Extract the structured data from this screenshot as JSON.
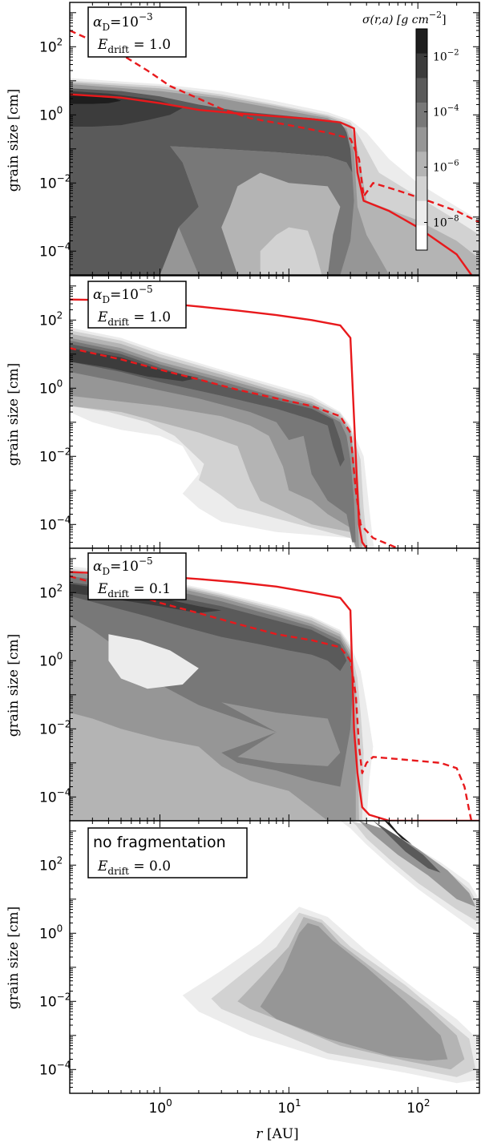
{
  "chart_data": [
    {
      "type": "heatmap",
      "panel": 1,
      "xlabel": "",
      "ylabel": "grain size [cm]",
      "xlim": [
        0.2,
        300
      ],
      "ylim": [
        2e-05,
        2000
      ],
      "xscale": "log",
      "yscale": "log",
      "x_tick_labels": [],
      "y_tick_labels": [
        "10^2",
        "10^0",
        "10^-2",
        "10^-4"
      ],
      "legend_lines": [
        "α_D = 10^-3",
        "E_drift = 1.0"
      ],
      "colorbar": {
        "title": "σ(r,a) [g cm^-2]",
        "tick_labels": [
          "10^-2",
          "10^-4",
          "10^-6",
          "10^-8"
        ],
        "levels": [
          1e-09,
          1e-08,
          1e-07,
          1e-06,
          1e-05,
          0.0001,
          0.001,
          0.01,
          0.1
        ],
        "colors": [
          "#ffffff",
          "#ececec",
          "#d2d2d2",
          "#b4b4b4",
          "#969696",
          "#787878",
          "#5a5a5a",
          "#3c3c3c",
          "#1e1e1e"
        ]
      },
      "series": [
        {
          "style": "solid",
          "color": "#e8191c",
          "points": [
            [
              0.2,
              4
            ],
            [
              0.5,
              3.2
            ],
            [
              1,
              2.2
            ],
            [
              2,
              1.4
            ],
            [
              4,
              1.1
            ],
            [
              8,
              0.9
            ],
            [
              15,
              0.75
            ],
            [
              25,
              0.6
            ],
            [
              32,
              0.4
            ],
            [
              34,
              0.02
            ],
            [
              38,
              0.003
            ],
            [
              60,
              0.0015
            ],
            [
              100,
              0.0005
            ],
            [
              200,
              8e-05
            ],
            [
              260,
              2e-05
            ]
          ]
        },
        {
          "style": "dashed",
          "color": "#e8191c",
          "points": [
            [
              0.2,
              300
            ],
            [
              0.3,
              150
            ],
            [
              0.5,
              60
            ],
            [
              0.8,
              20
            ],
            [
              1.2,
              7
            ],
            [
              2,
              3
            ],
            [
              3,
              1.5
            ],
            [
              5,
              0.8
            ],
            [
              10,
              0.5
            ],
            [
              20,
              0.3
            ],
            [
              30,
              0.2
            ],
            [
              35,
              0.05
            ],
            [
              38,
              0.004
            ],
            [
              45,
              0.01
            ],
            [
              70,
              0.006
            ],
            [
              120,
              0.003
            ],
            [
              200,
              0.0015
            ],
            [
              300,
              0.0007
            ]
          ]
        }
      ]
    },
    {
      "type": "heatmap",
      "panel": 2,
      "xlabel": "",
      "ylabel": "grain size [cm]",
      "xlim": [
        0.2,
        300
      ],
      "ylim": [
        2e-05,
        2000
      ],
      "xscale": "log",
      "yscale": "log",
      "x_tick_labels": [],
      "y_tick_labels": [
        "10^2",
        "10^0",
        "10^-2",
        "10^-4"
      ],
      "legend_lines": [
        "α_D = 10^-5",
        "E_drift = 1.0"
      ],
      "series": [
        {
          "style": "solid",
          "color": "#e8191c",
          "points": [
            [
              0.2,
              400
            ],
            [
              0.5,
              380
            ],
            [
              1,
              320
            ],
            [
              2,
              250
            ],
            [
              4,
              190
            ],
            [
              8,
              140
            ],
            [
              15,
              100
            ],
            [
              25,
              70
            ],
            [
              30,
              30
            ],
            [
              33,
              0.01
            ],
            [
              35,
              0.0001
            ],
            [
              37,
              3e-05
            ],
            [
              40,
              2e-05
            ]
          ]
        },
        {
          "style": "dashed",
          "color": "#e8191c",
          "points": [
            [
              0.2,
              15
            ],
            [
              0.5,
              7
            ],
            [
              1,
              3.5
            ],
            [
              2,
              1.8
            ],
            [
              4,
              0.9
            ],
            [
              8,
              0.5
            ],
            [
              15,
              0.3
            ],
            [
              25,
              0.15
            ],
            [
              30,
              0.05
            ],
            [
              33,
              0.001
            ],
            [
              36,
              0.0001
            ],
            [
              45,
              4e-05
            ],
            [
              70,
              2e-05
            ]
          ]
        }
      ]
    },
    {
      "type": "heatmap",
      "panel": 3,
      "xlabel": "",
      "ylabel": "grain size [cm]",
      "xlim": [
        0.2,
        300
      ],
      "ylim": [
        2e-05,
        2000
      ],
      "xscale": "log",
      "yscale": "log",
      "x_tick_labels": [],
      "y_tick_labels": [
        "10^2",
        "10^0",
        "10^-2",
        "10^-4"
      ],
      "legend_lines": [
        "α_D = 10^-5",
        "E_drift = 0.1"
      ],
      "series": [
        {
          "style": "solid",
          "color": "#e8191c",
          "points": [
            [
              0.2,
              400
            ],
            [
              0.5,
              350
            ],
            [
              1,
              300
            ],
            [
              2,
              250
            ],
            [
              4,
              200
            ],
            [
              8,
              150
            ],
            [
              15,
              100
            ],
            [
              25,
              70
            ],
            [
              30,
              30
            ],
            [
              32,
              0.01
            ],
            [
              34,
              0.0005
            ],
            [
              37,
              5e-05
            ],
            [
              42,
              3e-05
            ],
            [
              60,
              2e-05
            ],
            [
              200,
              2e-05
            ],
            [
              300,
              2e-05
            ]
          ]
        },
        {
          "style": "dashed",
          "color": "#e8191c",
          "points": [
            [
              0.2,
              300
            ],
            [
              0.5,
              120
            ],
            [
              1,
              50
            ],
            [
              2,
              25
            ],
            [
              4,
              12
            ],
            [
              8,
              6
            ],
            [
              15,
              4
            ],
            [
              25,
              2.5
            ],
            [
              30,
              1
            ],
            [
              33,
              0.1
            ],
            [
              35,
              0.003
            ],
            [
              37,
              0.0005
            ],
            [
              40,
              0.001
            ],
            [
              45,
              0.0015
            ],
            [
              70,
              0.0013
            ],
            [
              150,
              0.001
            ],
            [
              200,
              0.0007
            ],
            [
              230,
              0.0002
            ],
            [
              250,
              4e-05
            ],
            [
              260,
              2e-05
            ]
          ]
        }
      ]
    },
    {
      "type": "heatmap",
      "panel": 4,
      "xlabel": "r [AU]",
      "ylabel": "grain size [cm]",
      "xlim": [
        0.2,
        300
      ],
      "ylim": [
        2e-05,
        2000
      ],
      "xscale": "log",
      "yscale": "log",
      "x_tick_labels": [
        "10^0",
        "10^1",
        "10^2"
      ],
      "y_tick_labels": [
        "10^2",
        "10^0",
        "10^-2",
        "10^-4"
      ],
      "legend_lines": [
        "no fragmentation",
        "E_drift = 0.0"
      ],
      "series": []
    }
  ],
  "text": {
    "ylabel": "grain size [cm]",
    "xlabel_italic": "r",
    "xlabel_rest": " [AU]",
    "legend1_a": "α",
    "legend1_a_sub": "D",
    "legend1_a_eq": "=10",
    "legend1_a_exp": "−3",
    "legend1_b": "E",
    "legend1_b_sub": "drift",
    "legend1_b_eq": " = 1.0",
    "legend2_a": "α",
    "legend2_a_sub": "D",
    "legend2_a_eq": "=10",
    "legend2_a_exp": "−5",
    "legend2_b": "E",
    "legend2_b_sub": "drift",
    "legend2_b_eq": " = 1.0",
    "legend3_a": "α",
    "legend3_a_sub": "D",
    "legend3_a_eq": "=10",
    "legend3_a_exp": "−5",
    "legend3_b": "E",
    "legend3_b_sub": "drift",
    "legend3_b_eq": " = 0.1",
    "legend4_a": "no fragmentation",
    "legend4_b": "E",
    "legend4_b_sub": "drift",
    "legend4_b_eq": " = 0.0",
    "cb_title": "σ(r,a) [g cm",
    "cb_title_exp": "−2",
    "cb_title_end": "]",
    "ytick_base": "10",
    "ytick_exps": [
      "2",
      "0",
      "-2",
      "-4"
    ],
    "xtick_exps": [
      "0",
      "1",
      "2"
    ],
    "cb_exps": [
      "-2",
      "-4",
      "-6",
      "-8"
    ]
  }
}
